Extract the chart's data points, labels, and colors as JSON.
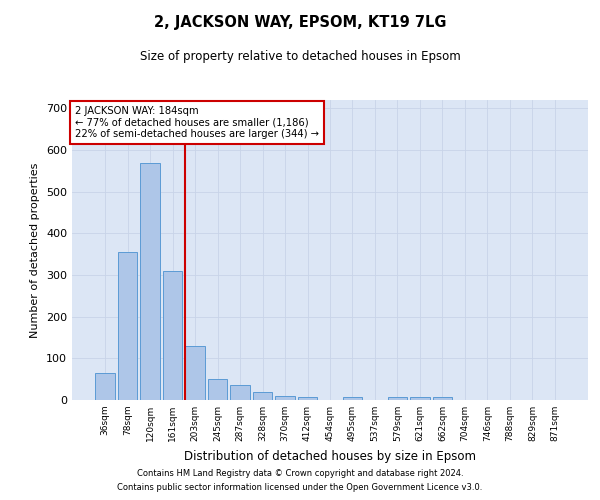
{
  "title1": "2, JACKSON WAY, EPSOM, KT19 7LG",
  "title2": "Size of property relative to detached houses in Epsom",
  "xlabel": "Distribution of detached houses by size in Epsom",
  "ylabel": "Number of detached properties",
  "categories": [
    "36sqm",
    "78sqm",
    "120sqm",
    "161sqm",
    "203sqm",
    "245sqm",
    "287sqm",
    "328sqm",
    "370sqm",
    "412sqm",
    "454sqm",
    "495sqm",
    "537sqm",
    "579sqm",
    "621sqm",
    "662sqm",
    "704sqm",
    "746sqm",
    "788sqm",
    "829sqm",
    "871sqm"
  ],
  "values": [
    65,
    355,
    570,
    310,
    130,
    50,
    35,
    20,
    10,
    8,
    0,
    8,
    0,
    8,
    8,
    8,
    0,
    0,
    0,
    0,
    0
  ],
  "bar_color": "#aec6e8",
  "bar_edge_color": "#5b9bd5",
  "annotation_text": "2 JACKSON WAY: 184sqm\n← 77% of detached houses are smaller (1,186)\n22% of semi-detached houses are larger (344) →",
  "annotation_box_color": "#ffffff",
  "annotation_box_edge": "#cc0000",
  "red_line_color": "#cc0000",
  "ylim": [
    0,
    720
  ],
  "yticks": [
    0,
    100,
    200,
    300,
    400,
    500,
    600,
    700
  ],
  "grid_color": "#c8d4e8",
  "bg_color": "#dce6f5",
  "footer1": "Contains HM Land Registry data © Crown copyright and database right 2024.",
  "footer2": "Contains public sector information licensed under the Open Government Licence v3.0."
}
